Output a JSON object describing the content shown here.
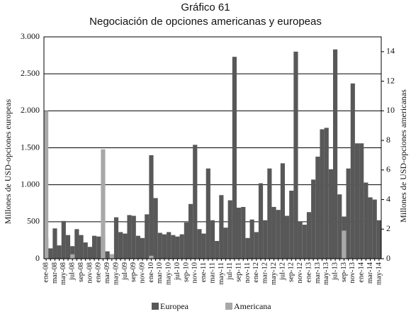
{
  "chart_data": {
    "type": "bar",
    "title": "Gráfico 61",
    "subtitle": "Negociación de opciones americanas y europeas",
    "y_label": "Millones de USD-opciones europeas",
    "y2_label": "Millones de USD-opciones americanas",
    "categories": [
      "ene-08",
      null,
      "mar-08",
      null,
      "may-08",
      null,
      "jul-08",
      null,
      "sep-08",
      null,
      "nov-08",
      null,
      "ene-09",
      null,
      "mar-09",
      null,
      "may-09",
      null,
      "jul-09",
      null,
      "sep-09",
      null,
      "nov-09",
      null,
      "ene-10",
      null,
      "mar-10",
      null,
      "may-10",
      null,
      "jul-10",
      null,
      "sep-10",
      null,
      "nov-10",
      null,
      "ene-11",
      null,
      "mar-11",
      null,
      "may-11",
      null,
      "jul-11",
      null,
      "sep-11",
      null,
      "nov-11",
      null,
      "ene-12",
      null,
      "mar-12",
      null,
      "may-12",
      null,
      "jul-12",
      null,
      "sep-12",
      null,
      "nov-12",
      null,
      "ene-13",
      null,
      "mar-13",
      null,
      "may-13",
      null,
      "jul-13",
      null,
      "sep-13",
      null,
      "nov-13",
      null,
      "ene-14",
      null,
      "mar-14",
      null,
      "may-14"
    ],
    "series": [
      {
        "name": "Europea",
        "color": "#585858",
        "axis": "y",
        "values": [
          280,
          140,
          410,
          180,
          510,
          320,
          170,
          400,
          320,
          220,
          160,
          310,
          300,
          290,
          100,
          60,
          560,
          360,
          340,
          590,
          580,
          310,
          280,
          600,
          1400,
          820,
          350,
          330,
          360,
          320,
          300,
          330,
          490,
          740,
          1540,
          400,
          340,
          1220,
          520,
          240,
          860,
          420,
          790,
          2730,
          690,
          700,
          280,
          530,
          360,
          1020,
          520,
          1220,
          700,
          660,
          1290,
          580,
          920,
          2800,
          500,
          460,
          630,
          1070,
          1380,
          1750,
          1770,
          1210,
          2830,
          870,
          570,
          1220,
          2370,
          1560,
          1560,
          1030,
          830,
          800,
          520
        ]
      },
      {
        "name": "Americana",
        "color": "#a8a8a8",
        "axis": "y2",
        "values": [
          10,
          0,
          0,
          0,
          0,
          0,
          0.3,
          0,
          0,
          0,
          0,
          0,
          0,
          7.4,
          0,
          0.3,
          0,
          0,
          0,
          0,
          0,
          0,
          0,
          0,
          0.2,
          0,
          0,
          0,
          0,
          0,
          0,
          0,
          0,
          0,
          0,
          0,
          0,
          0,
          0,
          0,
          0,
          0,
          0,
          0,
          0,
          0,
          0,
          0,
          0,
          0,
          0,
          0,
          0,
          0,
          0,
          0,
          0,
          0,
          0,
          0,
          0,
          0,
          0,
          0,
          0,
          0,
          0,
          0,
          1.9,
          0,
          0,
          0,
          0,
          0,
          0,
          0,
          0
        ]
      }
    ],
    "ylim": [
      0,
      3000
    ],
    "yticks": [
      0,
      500,
      {
        "value": 1000,
        "label": "1.000"
      },
      {
        "value": 1500,
        "label": "1.500"
      },
      {
        "value": 2000,
        "label": "2.000"
      },
      {
        "value": 2500,
        "label": "2.500"
      },
      {
        "value": 3000,
        "label": "3.000"
      }
    ],
    "y2lim": [
      0,
      15
    ],
    "y2ticks": [
      0,
      2,
      4,
      6,
      8,
      10,
      12,
      14
    ],
    "grid": true
  }
}
